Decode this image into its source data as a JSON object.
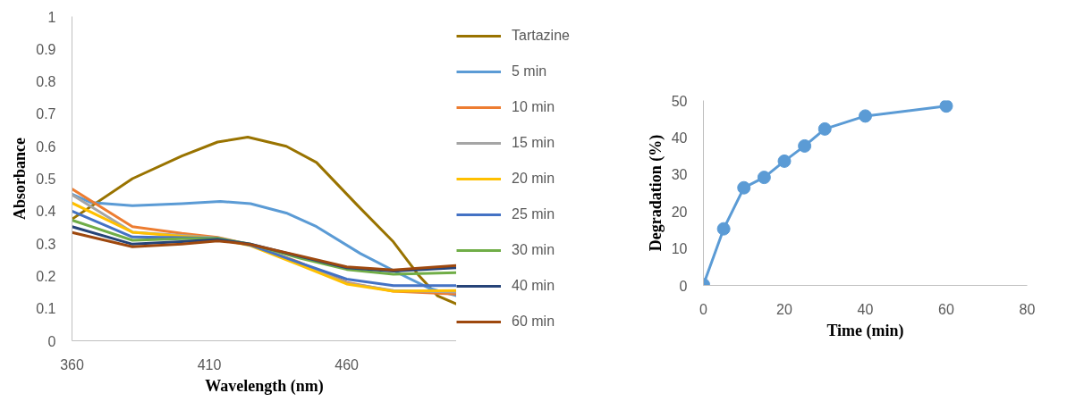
{
  "chart_data": [
    {
      "type": "line",
      "xlabel": "Wavelength (nm)",
      "ylabel": "Absorbance",
      "xlim": [
        360,
        500
      ],
      "xticks": [
        360,
        410,
        460
      ],
      "ylim": [
        0,
        1
      ],
      "yticks": [
        0,
        0.1,
        0.2,
        0.3,
        0.4,
        0.5,
        0.6,
        0.7,
        0.8,
        0.9,
        1
      ],
      "grid": false,
      "legend": "right",
      "marker": "none",
      "series": [
        {
          "name": "Tartazine",
          "color": "#997300",
          "x": [
            360,
            382,
            400,
            413,
            424,
            438,
            449,
            464,
            477,
            486,
            493,
            500
          ],
          "values": [
            0.375,
            0.5,
            0.57,
            0.613,
            0.628,
            0.6,
            0.55,
            0.417,
            0.305,
            0.204,
            0.139,
            0.113
          ]
        },
        {
          "name": "5 min",
          "color": "#5b9bd5",
          "x": [
            360,
            367,
            382,
            400,
            414,
            425,
            438,
            449,
            465,
            479,
            490,
            500
          ],
          "values": [
            0.452,
            0.426,
            0.417,
            0.423,
            0.43,
            0.423,
            0.394,
            0.352,
            0.269,
            0.208,
            0.162,
            0.139
          ]
        },
        {
          "name": "10 min",
          "color": "#ed7d31",
          "x": [
            360,
            382,
            400,
            413,
            425,
            443,
            460,
            477,
            500
          ],
          "values": [
            0.468,
            0.352,
            0.331,
            0.319,
            0.296,
            0.241,
            0.18,
            0.153,
            0.144
          ]
        },
        {
          "name": "15 min",
          "color": "#a5a5a5",
          "x": [
            360,
            382,
            400,
            413,
            425,
            443,
            460,
            477,
            500
          ],
          "values": [
            0.45,
            0.335,
            0.325,
            0.317,
            0.296,
            0.238,
            0.178,
            0.155,
            0.15
          ]
        },
        {
          "name": "20 min",
          "color": "#ffc000",
          "x": [
            360,
            382,
            400,
            413,
            425,
            443,
            460,
            477,
            500
          ],
          "values": [
            0.425,
            0.335,
            0.322,
            0.315,
            0.293,
            0.233,
            0.175,
            0.153,
            0.155
          ]
        },
        {
          "name": "25 min",
          "color": "#4472c4",
          "x": [
            360,
            382,
            400,
            413,
            425,
            443,
            460,
            477,
            500
          ],
          "values": [
            0.4,
            0.32,
            0.318,
            0.316,
            0.295,
            0.24,
            0.19,
            0.17,
            0.17
          ]
        },
        {
          "name": "30 min",
          "color": "#70ad47",
          "x": [
            360,
            382,
            400,
            413,
            425,
            443,
            460,
            477,
            500
          ],
          "values": [
            0.372,
            0.31,
            0.315,
            0.316,
            0.298,
            0.255,
            0.22,
            0.205,
            0.21
          ]
        },
        {
          "name": "40 min",
          "color": "#264478",
          "x": [
            360,
            382,
            400,
            413,
            425,
            443,
            460,
            477,
            500
          ],
          "values": [
            0.352,
            0.298,
            0.306,
            0.313,
            0.298,
            0.26,
            0.225,
            0.215,
            0.225
          ]
        },
        {
          "name": "60 min",
          "color": "#9e480e",
          "x": [
            360,
            382,
            400,
            413,
            425,
            443,
            460,
            477,
            500
          ],
          "values": [
            0.334,
            0.29,
            0.298,
            0.308,
            0.297,
            0.262,
            0.228,
            0.218,
            0.232
          ]
        }
      ]
    },
    {
      "type": "line",
      "xlabel": "Time (min)",
      "ylabel": "Degradation (%)",
      "xlim": [
        0,
        80
      ],
      "xticks": [
        0,
        20,
        40,
        60,
        80
      ],
      "ylim": [
        0,
        50
      ],
      "yticks": [
        0,
        10,
        20,
        30,
        40,
        50
      ],
      "grid": false,
      "marker": "circle",
      "series": [
        {
          "color": "#5b9bd5",
          "x": [
            0,
            5,
            10,
            15,
            20,
            25,
            30,
            40,
            60
          ],
          "values": [
            0.2,
            15.3,
            26.4,
            29.2,
            33.6,
            37.7,
            42.3,
            45.8,
            48.5
          ]
        }
      ]
    }
  ]
}
